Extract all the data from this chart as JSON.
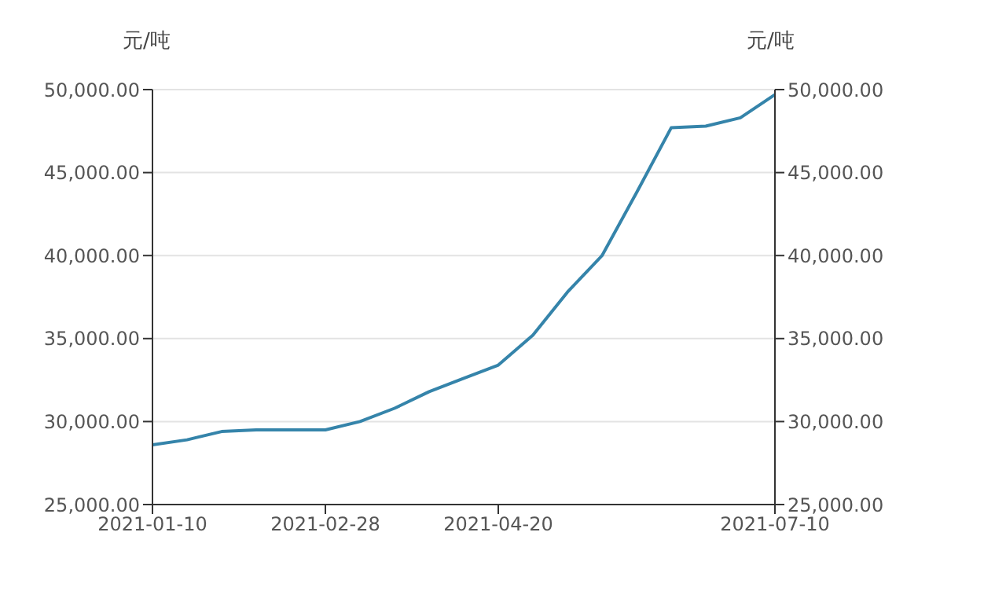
{
  "chart_data": {
    "type": "line",
    "categories": [
      "2021-01-10",
      null,
      null,
      null,
      null,
      "2021-02-28",
      null,
      null,
      null,
      null,
      "2021-04-20",
      null,
      null,
      null,
      null,
      null,
      null,
      null,
      "2021-07-10"
    ],
    "series": [
      {
        "color": "#3584aa",
        "values": [
          28600,
          28900,
          29400,
          29500,
          29500,
          29500,
          30000,
          30800,
          31800,
          32600,
          33400,
          35200,
          37800,
          40000,
          43800,
          47700,
          47800,
          48300,
          49700
        ]
      }
    ],
    "ylabel": "元/吨",
    "y2label": "元/吨",
    "ylim": [
      25000,
      50000
    ],
    "yticks": [
      {
        "value": 25000,
        "label": "25,000.00"
      },
      {
        "value": 30000,
        "label": "30,000.00"
      },
      {
        "value": 35000,
        "label": "35,000.00"
      },
      {
        "value": 40000,
        "label": "40,000.00"
      },
      {
        "value": 45000,
        "label": "45,000.00"
      },
      {
        "value": 50000,
        "label": "50,000.00"
      }
    ],
    "y2lim": [
      25000,
      50000
    ],
    "y2ticks": [
      {
        "value": 25000,
        "label": "25,000.00"
      },
      {
        "value": 30000,
        "label": "30,000.00"
      },
      {
        "value": 35000,
        "label": "35,000.00"
      },
      {
        "value": 40000,
        "label": "40,000.00"
      },
      {
        "value": 45000,
        "label": "45,000.00"
      },
      {
        "value": 50000,
        "label": "50,000.00"
      }
    ],
    "grid": "y",
    "marker": "none",
    "line_style": "solid"
  }
}
